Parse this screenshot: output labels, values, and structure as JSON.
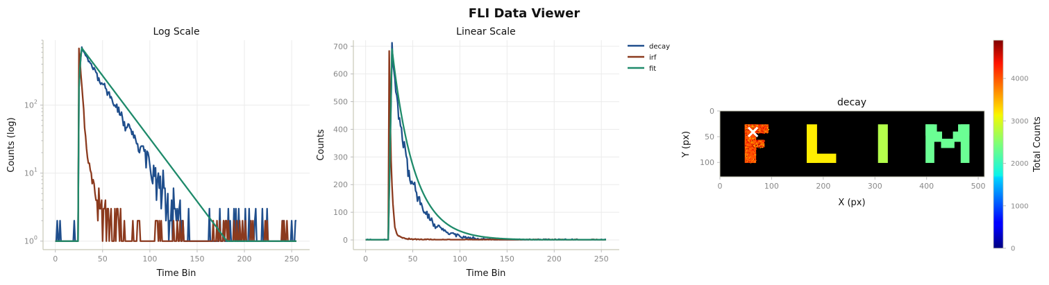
{
  "suptitle": "FLI Data Viewer",
  "chart_data": [
    {
      "id": "log",
      "type": "line",
      "title": "Log Scale",
      "xlabel": "Time Bin",
      "ylabel": "Counts (log)",
      "yscale": "log",
      "xlim": [
        -13,
        269
      ],
      "ylim": [
        0.75,
        900
      ],
      "xticks": [
        0,
        50,
        100,
        150,
        200,
        250
      ],
      "yticks": [
        1,
        10,
        100
      ],
      "ytick_labels": [
        [
          "10",
          "0"
        ],
        [
          "10",
          "1"
        ],
        [
          "10",
          "2"
        ]
      ],
      "grid": true,
      "legend": false
    },
    {
      "id": "lin",
      "type": "line",
      "title": "Linear Scale",
      "xlabel": "Time Bin",
      "ylabel": "Counts",
      "yscale": "linear",
      "xlim": [
        -13,
        269
      ],
      "ylim": [
        -35,
        722
      ],
      "xticks": [
        0,
        50,
        100,
        150,
        200,
        250
      ],
      "yticks": [
        0,
        100,
        200,
        300,
        400,
        500,
        600,
        700
      ],
      "grid": true,
      "legend": "outside upper right"
    },
    {
      "id": "image",
      "type": "heatmap",
      "title": "decay",
      "xlabel": "X (px)",
      "ylabel": "Y (px)",
      "xlim": [
        0,
        512
      ],
      "ylim": [
        128,
        0
      ],
      "xticks": [
        0,
        100,
        200,
        300,
        400,
        500
      ],
      "yticks": [
        0,
        50,
        100
      ],
      "letters": [
        "F",
        "L",
        "I",
        "M"
      ],
      "letter_values": [
        3900,
        3150,
        2700,
        2350
      ],
      "marker": {
        "x": 64,
        "y": 40,
        "symbol": "×",
        "color": "#ffffff"
      },
      "colorbar": {
        "label": "Total Counts",
        "range": [
          0,
          4900
        ],
        "ticks": [
          0,
          1000,
          2000,
          3000,
          4000
        ],
        "colormap": "jet"
      }
    }
  ],
  "series": [
    {
      "name": "decay",
      "color": "#1f4e8c"
    },
    {
      "name": "irf",
      "color": "#8b3a1e"
    },
    {
      "name": "fit",
      "color": "#1e8a6a"
    }
  ],
  "curve_model": {
    "bins": 256,
    "onset_bin": 25,
    "decay": {
      "peak": 680,
      "peak_bin": 28,
      "tau": 18.3
    },
    "irf": {
      "peak": 680,
      "peak_bin": 25,
      "tau_fast": 2.3,
      "slow_amplitude": 9,
      "tau_slow": 26
    },
    "fit": {
      "peak": 690,
      "peak_bin": 28,
      "tau": 23.5
    }
  }
}
